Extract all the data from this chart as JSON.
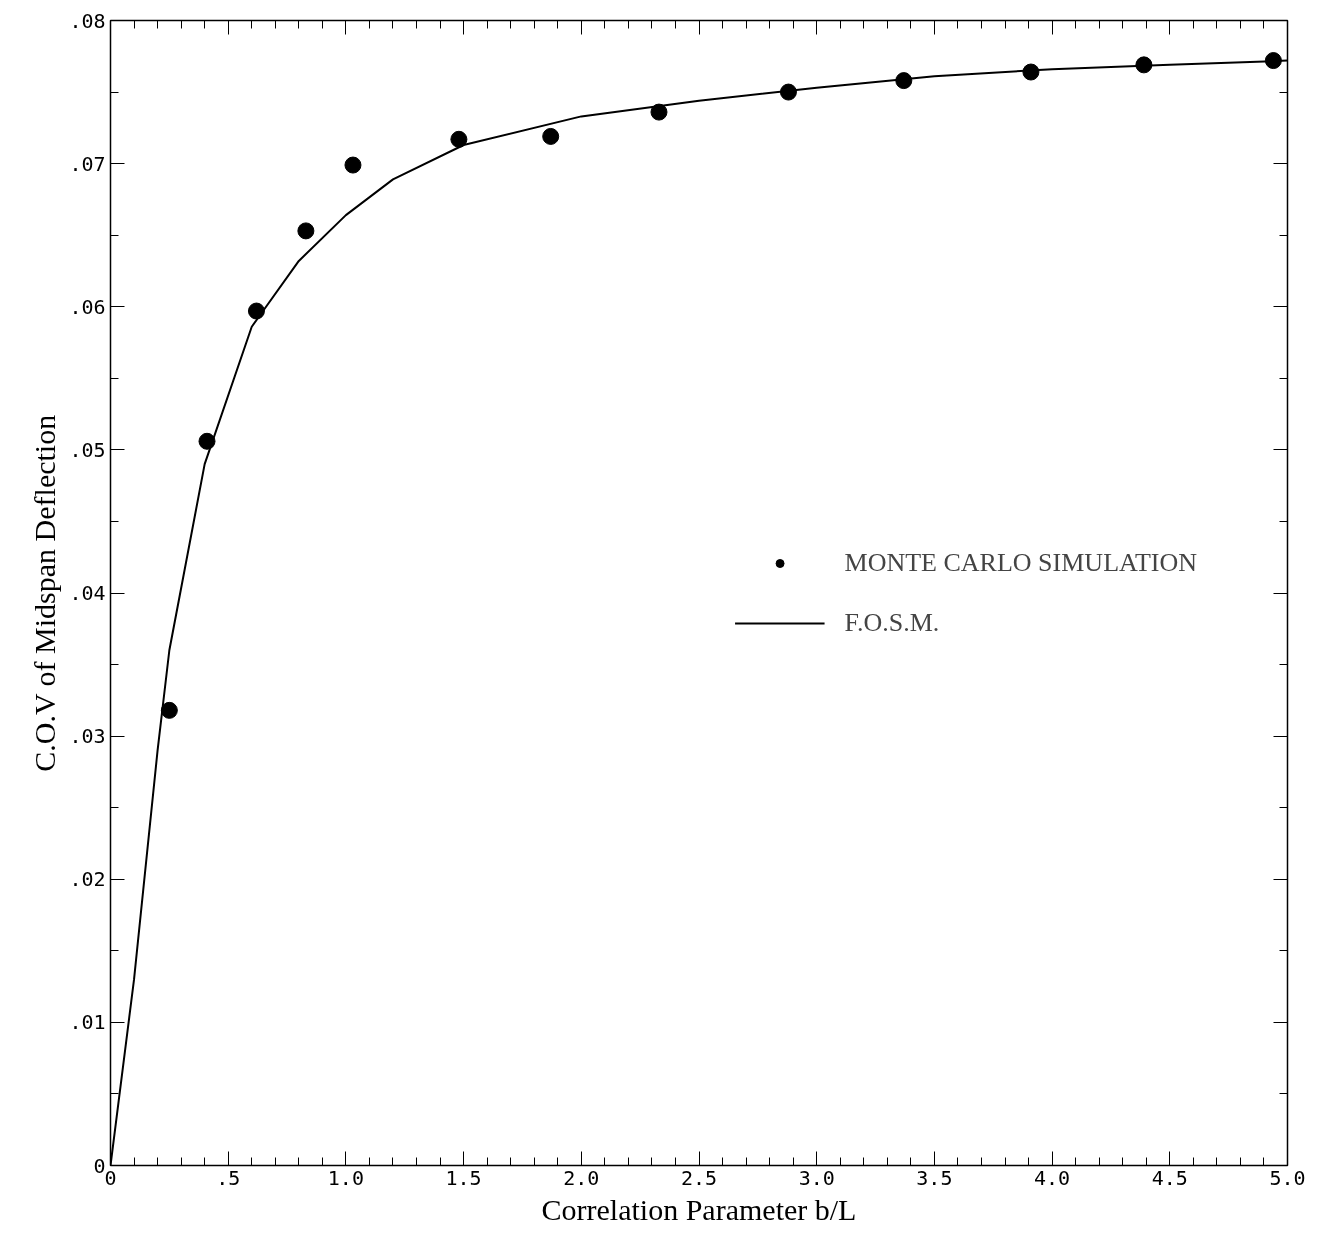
{
  "chart_data": {
    "type": "scatter",
    "xlabel": "Correlation Parameter b/L",
    "ylabel": "C.O.V of Midspan Deflection",
    "xlim": [
      0,
      5.0
    ],
    "ylim": [
      0,
      0.08
    ],
    "xticks": [
      0,
      {
        "value": 0.1,
        "label": null
      },
      {
        "value": 0.2,
        "label": null
      },
      {
        "value": 0.3,
        "label": null
      },
      {
        "value": 0.4,
        "label": null
      },
      {
        "value": 0.5,
        "label": ".5"
      },
      {
        "value": 0.6,
        "label": null
      },
      {
        "value": 0.7,
        "label": null
      },
      {
        "value": 0.8,
        "label": null
      },
      {
        "value": 0.9,
        "label": null
      },
      {
        "value": 1.0,
        "label": "1.0"
      },
      {
        "value": 1.1,
        "label": null
      },
      {
        "value": 1.2,
        "label": null
      },
      {
        "value": 1.3,
        "label": null
      },
      {
        "value": 1.4,
        "label": null
      },
      {
        "value": 1.5,
        "label": "1.5"
      },
      {
        "value": 1.6,
        "label": null
      },
      {
        "value": 1.7,
        "label": null
      },
      {
        "value": 1.8,
        "label": null
      },
      {
        "value": 1.9,
        "label": null
      },
      {
        "value": 2.0,
        "label": "2.0"
      },
      {
        "value": 2.1,
        "label": null
      },
      {
        "value": 2.2,
        "label": null
      },
      {
        "value": 2.3,
        "label": null
      },
      {
        "value": 2.4,
        "label": null
      },
      {
        "value": 2.5,
        "label": "2.5"
      },
      {
        "value": 2.6,
        "label": null
      },
      {
        "value": 2.7,
        "label": null
      },
      {
        "value": 2.8,
        "label": null
      },
      {
        "value": 2.9,
        "label": null
      },
      {
        "value": 3.0,
        "label": "3.0"
      },
      {
        "value": 3.1,
        "label": null
      },
      {
        "value": 3.2,
        "label": null
      },
      {
        "value": 3.3,
        "label": null
      },
      {
        "value": 3.4,
        "label": null
      },
      {
        "value": 3.5,
        "label": "3.5"
      },
      {
        "value": 3.6,
        "label": null
      },
      {
        "value": 3.7,
        "label": null
      },
      {
        "value": 3.8,
        "label": null
      },
      {
        "value": 3.9,
        "label": null
      },
      {
        "value": 4.0,
        "label": "4.0"
      },
      {
        "value": 4.1,
        "label": null
      },
      {
        "value": 4.2,
        "label": null
      },
      {
        "value": 4.3,
        "label": null
      },
      {
        "value": 4.4,
        "label": null
      },
      {
        "value": 4.5,
        "label": "4.5"
      },
      {
        "value": 4.6,
        "label": null
      },
      {
        "value": 4.7,
        "label": null
      },
      {
        "value": 4.8,
        "label": null
      },
      {
        "value": 4.9,
        "label": null
      },
      {
        "value": 5.0,
        "label": "5.0"
      }
    ],
    "yticks": [
      0,
      {
        "value": 0.005,
        "label": null
      },
      {
        "value": 0.01,
        "label": ".01"
      },
      {
        "value": 0.015,
        "label": null
      },
      {
        "value": 0.02,
        "label": ".02"
      },
      {
        "value": 0.025,
        "label": null
      },
      {
        "value": 0.03,
        "label": ".03"
      },
      {
        "value": 0.035,
        "label": null
      },
      {
        "value": 0.04,
        "label": ".04"
      },
      {
        "value": 0.045,
        "label": null
      },
      {
        "value": 0.05,
        "label": ".05"
      },
      {
        "value": 0.055,
        "label": null
      },
      {
        "value": 0.06,
        "label": ".06"
      },
      {
        "value": 0.065,
        "label": null
      },
      {
        "value": 0.07,
        "label": ".07"
      },
      {
        "value": 0.075,
        "label": null
      },
      {
        "value": 0.08,
        "label": ".08"
      }
    ],
    "grid": false,
    "legend": "right",
    "series": [
      {
        "name": "MONTE CARLO SIMULATION",
        "marker": "circle",
        "color": "#000000",
        "x": [
          0.25,
          0.41,
          0.62,
          0.83,
          1.03,
          1.48,
          1.87,
          2.33,
          2.88,
          3.37,
          3.91,
          4.39,
          4.94
        ],
        "values": [
          0.0318,
          0.0506,
          0.0597,
          0.0653,
          0.0699,
          0.0717,
          0.0719,
          0.0736,
          0.075,
          0.0758,
          0.0764,
          0.0769,
          0.0772
        ]
      },
      {
        "name": "F.O.S.M.",
        "type": "line",
        "line_style": "solid",
        "color": "#000000",
        "x": [
          0,
          0.1,
          0.2,
          0.25,
          0.4,
          0.6,
          0.8,
          1.0,
          1.2,
          1.5,
          2.0,
          2.5,
          3.0,
          3.5,
          4.0,
          4.5,
          5.0
        ],
        "values": [
          0,
          0.013,
          0.029,
          0.036,
          0.049,
          0.0586,
          0.0632,
          0.0664,
          0.0689,
          0.0713,
          0.0733,
          0.0744,
          0.0753,
          0.0761,
          0.0766,
          0.0769,
          0.0772
        ]
      }
    ]
  }
}
